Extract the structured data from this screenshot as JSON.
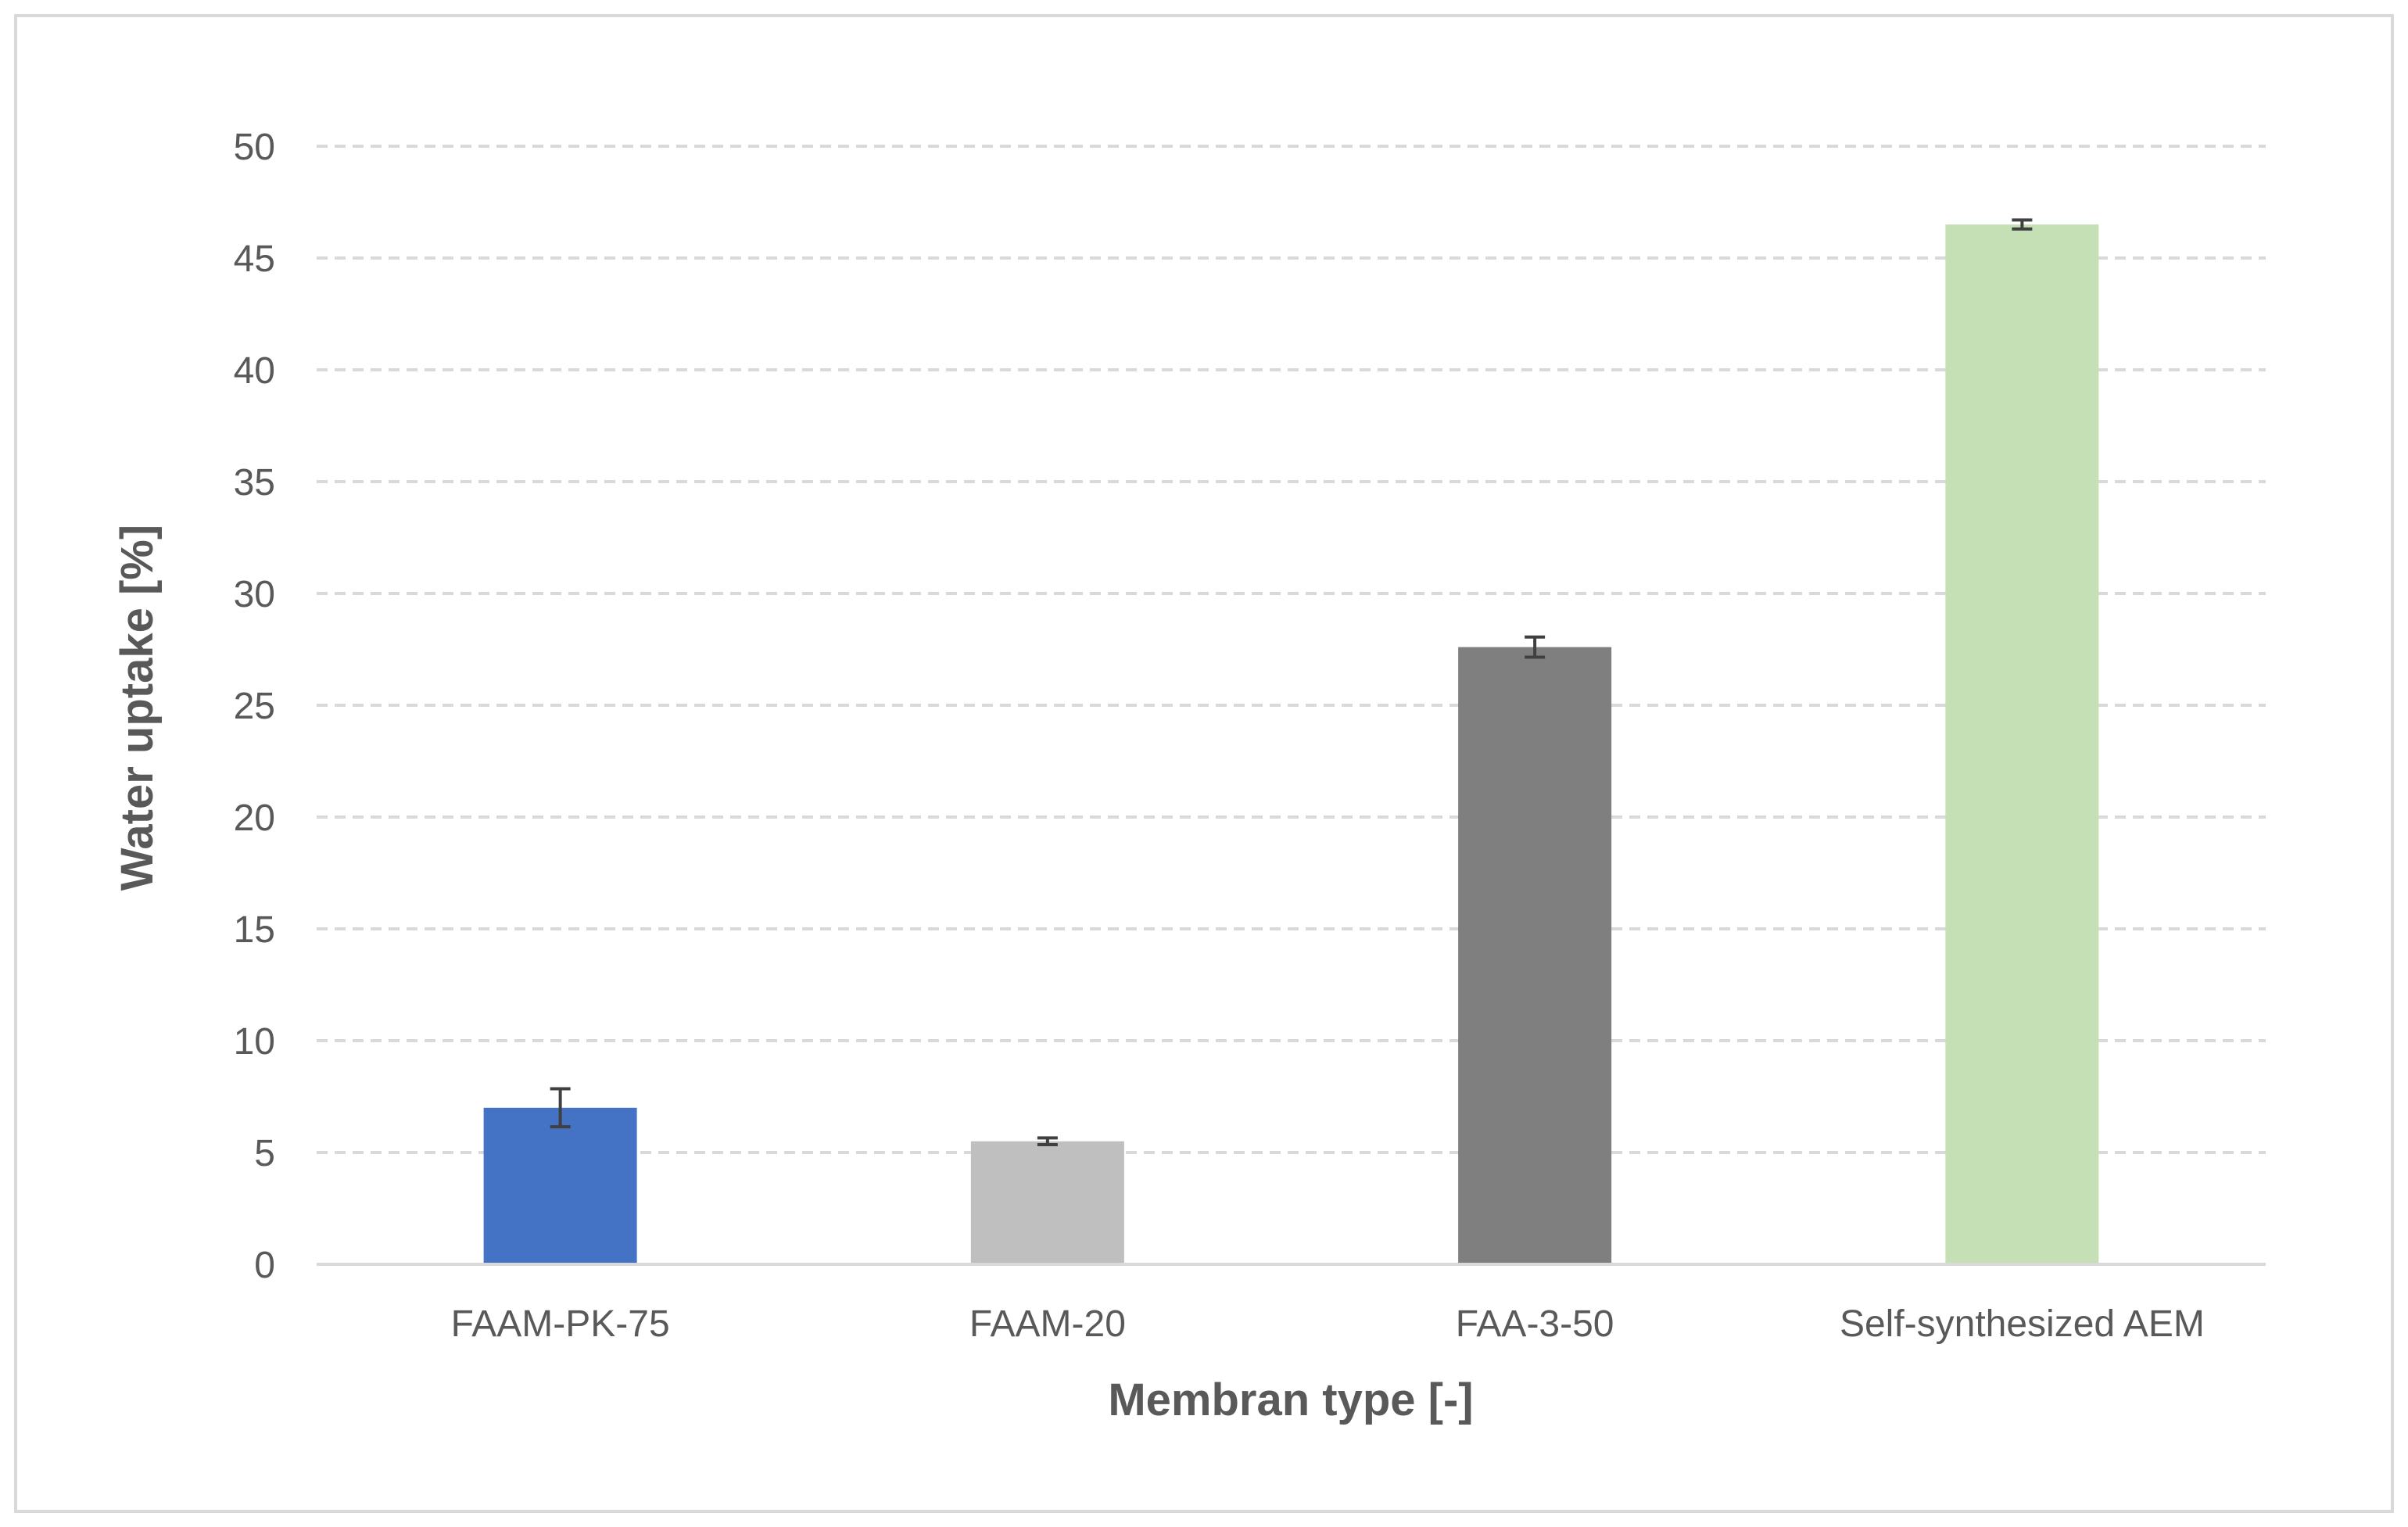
{
  "chart_data": {
    "type": "bar",
    "title": "",
    "xlabel": "Membran type [-]",
    "ylabel": "Water uptake [%]",
    "categories": [
      "FAAM-PK-75",
      "FAAM-20",
      "FAA-3-50",
      "Self-synthesized AEM"
    ],
    "values": [
      7.0,
      5.5,
      27.6,
      46.5
    ],
    "error": [
      0.85,
      0.15,
      0.45,
      0.2
    ],
    "ylim": [
      0,
      50
    ],
    "yticks": [
      "0",
      "5",
      "10",
      "15",
      "20",
      "25",
      "30",
      "35",
      "40",
      "45",
      "50"
    ],
    "grid": true,
    "legend": "none",
    "colors": [
      "#4472c4",
      "#bfbfbf",
      "#7f7f7f",
      "#c5e0b4"
    ],
    "gridline_color": "#d9d9d9",
    "axis_color": "#d9d9d9",
    "frame_color": "#d9d9d9",
    "text_color": "#595959",
    "error_bar_color": "#404040"
  }
}
